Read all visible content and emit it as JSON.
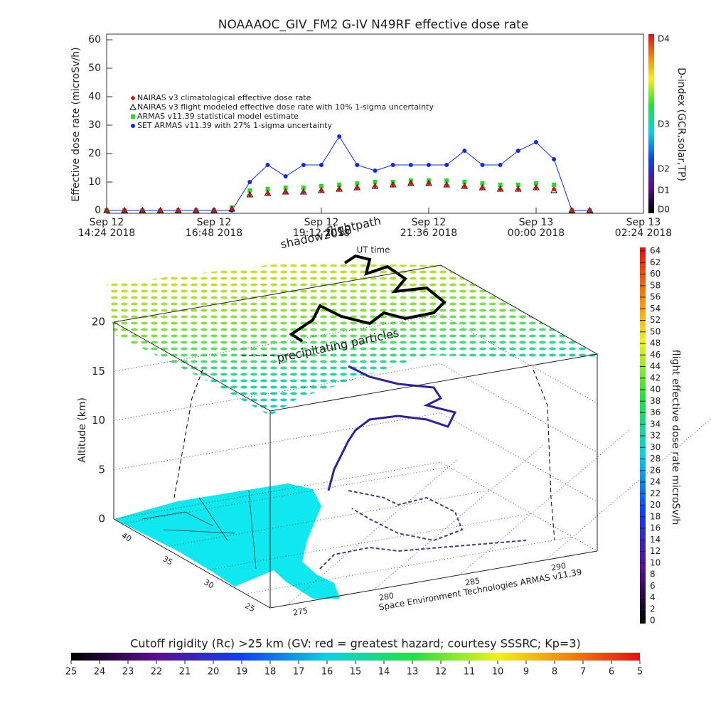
{
  "chart_data": [
    {
      "type": "line",
      "title": "NOAAAOC_GIV_FM2 G-IV   N49RF  effective dose rate",
      "y_label": "Effective dose rate (microSv/h)",
      "x_label": "UT time",
      "x": [
        "2018-09-12T14:24",
        "2018-09-12T14:48",
        "2018-09-12T15:12",
        "2018-09-12T15:36",
        "2018-09-12T16:00",
        "2018-09-12T16:24",
        "2018-09-12T16:48",
        "2018-09-12T17:12",
        "2018-09-12T17:36",
        "2018-09-12T18:00",
        "2018-09-12T18:24",
        "2018-09-12T18:48",
        "2018-09-12T19:12",
        "2018-09-12T19:36",
        "2018-09-12T20:00",
        "2018-09-12T20:24",
        "2018-09-12T20:48",
        "2018-09-12T21:12",
        "2018-09-12T21:36",
        "2018-09-12T22:00",
        "2018-09-12T22:24",
        "2018-09-12T22:48",
        "2018-09-12T23:12",
        "2018-09-12T23:36",
        "2018-09-13T00:00",
        "2018-09-13T00:24",
        "2018-09-13T00:48",
        "2018-09-13T01:12"
      ],
      "xlim": [
        "2018-09-12T14:24",
        "2018-09-13T02:24"
      ],
      "xticks": [
        {
          "value": "2018-09-12T14:24",
          "label": "Sep 12\n14:24 2018"
        },
        {
          "value": "2018-09-12T16:48",
          "label": "Sep 12\n16:48 2018"
        },
        {
          "value": "2018-09-12T19:12",
          "label": "Sep 12\n19:12 2018"
        },
        {
          "value": "2018-09-12T21:36",
          "label": "Sep 12\n21:36 2018"
        },
        {
          "value": "2018-09-13T00:00",
          "label": "Sep 13\n00:00 2018"
        },
        {
          "value": "2018-09-13T02:24",
          "label": "Sep 13\n02:24 2018"
        }
      ],
      "ylim": [
        -1,
        62
      ],
      "yticks": [
        0,
        10,
        20,
        30,
        40,
        50,
        60
      ],
      "legend": "upper left",
      "series": [
        {
          "name": "NAIRAS v3 climatological effective dose rate",
          "color": "#d01010",
          "marker": "diamond",
          "values": [
            0,
            0,
            0,
            0,
            0,
            0,
            0,
            0.5,
            5.5,
            6,
            6.5,
            6.5,
            7,
            7.5,
            8,
            8.5,
            9,
            9.5,
            9.5,
            9,
            8.5,
            8,
            7.5,
            7.5,
            8,
            7.5,
            0,
            0
          ]
        },
        {
          "name": "NAIRAS v3 flight modeled effective dose rate with 10% 1-sigma uncertainty",
          "color": "#000000",
          "marker": "triangle",
          "values": [
            0,
            0,
            0,
            0,
            0,
            0,
            0,
            0.5,
            5.5,
            6,
            6.5,
            6.5,
            7,
            7.5,
            8,
            8.5,
            9,
            9.5,
            9.5,
            9,
            8.5,
            8,
            7.5,
            7.5,
            8,
            7,
            0,
            0
          ]
        },
        {
          "name": "ARMAS v11.39 statistical model estimate",
          "color": "#22dd22",
          "marker": "square",
          "values": [
            0,
            0,
            0,
            0,
            0,
            0,
            0,
            1,
            7,
            7.5,
            8,
            8,
            8.5,
            9,
            9.5,
            10,
            10,
            10.5,
            10.5,
            10.5,
            10,
            9.5,
            9,
            9,
            9.5,
            9,
            0,
            0
          ]
        },
        {
          "name": "SET ARMAS v11.39 with 27% 1-sigma uncertainty",
          "color": "#1028ee",
          "marker": "circle",
          "values": [
            0,
            0,
            0,
            0,
            0,
            0,
            0,
            0,
            10,
            16,
            12,
            16,
            16,
            26,
            16,
            14,
            16,
            16,
            16,
            16,
            21,
            16,
            16,
            21,
            24,
            18,
            0,
            0
          ]
        }
      ],
      "colorbar": {
        "label": "D-index (GCR,solar,TP)",
        "ticks": [
          "D0",
          "D1",
          "D2",
          "D3",
          "D4"
        ]
      }
    },
    {
      "type": "surface3d",
      "z_label": "Altitude (km)",
      "zlim": [
        0,
        20
      ],
      "zticks": [
        0,
        5,
        10,
        15,
        20
      ],
      "latlim": [
        41,
        22
      ],
      "lat_ticks": [
        40,
        35,
        30,
        25
      ],
      "lonlim": [
        274,
        293
      ],
      "lon_ticks": [
        275,
        280,
        285,
        290
      ],
      "annotations": [
        "shadow2018",
        "flightpath",
        "precipitating particles"
      ],
      "credit": "Space Environment Technologies ARMAS v11.39",
      "colorbar": {
        "label": "flight effective dose rate microSv/h",
        "lim": [
          0,
          64
        ],
        "ticks": [
          0,
          2,
          4,
          6,
          8,
          10,
          12,
          14,
          16,
          18,
          20,
          22,
          24,
          26,
          28,
          30,
          32,
          34,
          36,
          38,
          40,
          42,
          44,
          46,
          48,
          50,
          52,
          54,
          56,
          58,
          60,
          62,
          64
        ]
      }
    },
    {
      "type": "colorbar",
      "label": "Cutoff rigidity (Rc) >25 km (GV: red = greatest hazard; courtesy SSSRC; Kp=3)",
      "lim": [
        25,
        5
      ],
      "ticks": [
        25,
        24,
        23,
        22,
        21,
        20,
        19,
        18,
        17,
        16,
        15,
        14,
        13,
        12,
        11,
        10,
        9,
        8,
        7,
        6,
        5
      ]
    }
  ]
}
